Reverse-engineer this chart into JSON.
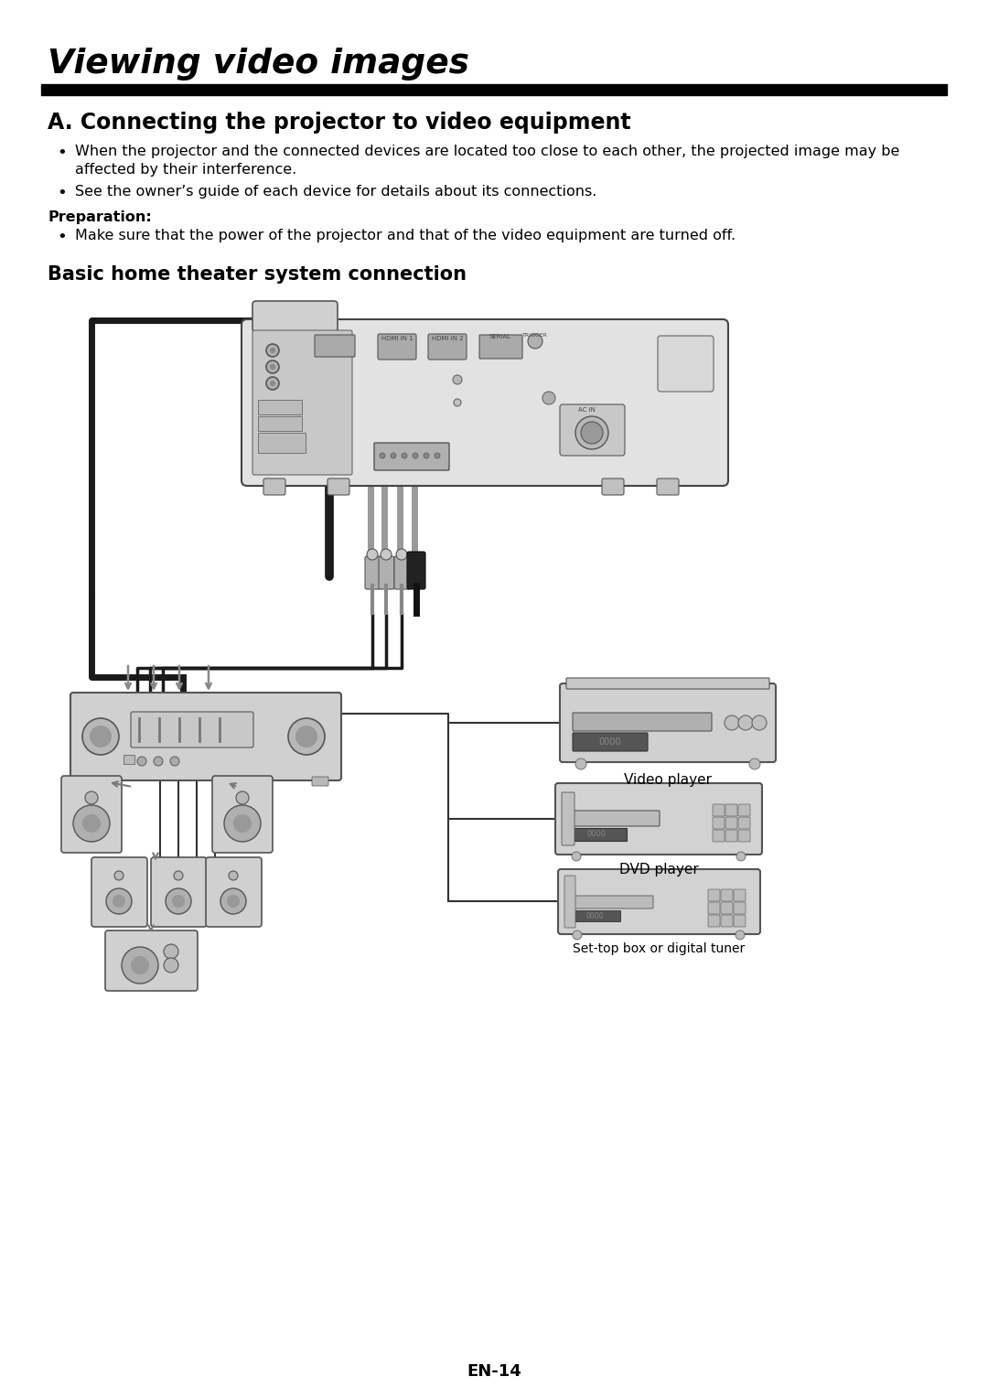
{
  "title": "Viewing video images",
  "section_title": "A. Connecting the projector to video equipment",
  "bullet1_line1": "When the projector and the connected devices are located too close to each other, the projected image may be",
  "bullet1_line2": "affected by their interference.",
  "bullet2": "See the owner’s guide of each device for details about its connections.",
  "prep_label": "Preparation:",
  "prep_bullet": "Make sure that the power of the projector and that of the video equipment are turned off.",
  "subsection_title": "Basic home theater system connection",
  "label_video": "Video player",
  "label_dvd": "DVD player",
  "label_stb": "Set-top box or digital tuner",
  "page_number": "EN-14",
  "bg": "#ffffff",
  "black": "#000000",
  "dark": "#222222",
  "med": "#666666",
  "light": "#aaaaaa",
  "lighter": "#cccccc",
  "lgray": "#888888",
  "device_face": "#d4d4d4",
  "device_edge": "#555555"
}
